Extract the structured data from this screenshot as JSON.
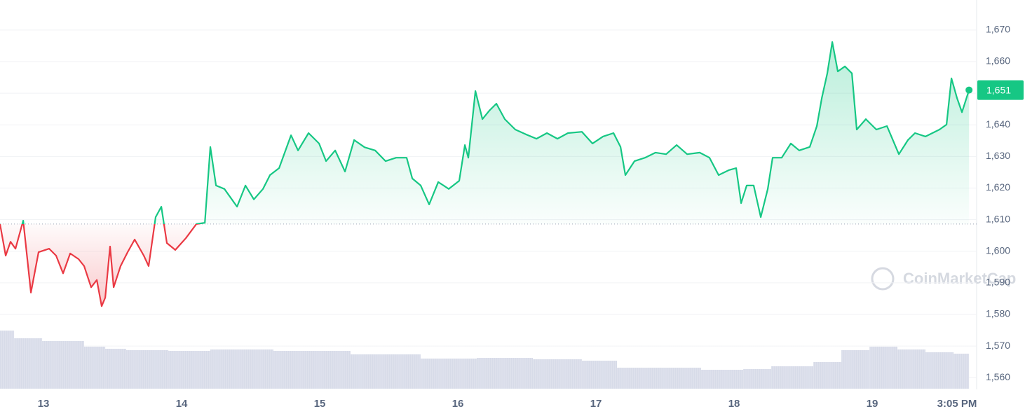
{
  "chart_data": {
    "type": "line",
    "x": [
      12.685,
      12.726,
      12.761,
      12.797,
      12.853,
      12.909,
      12.964,
      13.041,
      13.091,
      13.142,
      13.193,
      13.254,
      13.294,
      13.345,
      13.386,
      13.421,
      13.447,
      13.482,
      13.508,
      13.558,
      13.609,
      13.66,
      13.726,
      13.761,
      13.812,
      13.853,
      13.893,
      13.954,
      14.03,
      14.107,
      14.168,
      14.208,
      14.249,
      14.31,
      14.401,
      14.462,
      14.523,
      14.589,
      14.64,
      14.706,
      14.792,
      14.843,
      14.919,
      14.995,
      15.046,
      15.112,
      15.183,
      15.249,
      15.325,
      15.401,
      15.477,
      15.553,
      15.629,
      15.67,
      15.731,
      15.792,
      15.858,
      15.934,
      16.01,
      16.051,
      16.076,
      16.127,
      16.178,
      16.228,
      16.279,
      16.34,
      16.416,
      16.492,
      16.569,
      16.645,
      16.721,
      16.797,
      16.898,
      16.975,
      17.051,
      17.127,
      17.178,
      17.213,
      17.279,
      17.355,
      17.431,
      17.508,
      17.584,
      17.66,
      17.751,
      17.822,
      17.888,
      17.964,
      18.015,
      18.051,
      18.091,
      18.142,
      18.193,
      18.244,
      18.279,
      18.345,
      18.411,
      18.472,
      18.548,
      18.599,
      18.635,
      18.675,
      18.711,
      18.751,
      18.802,
      18.853,
      18.888,
      18.954,
      19.03,
      19.107,
      19.193,
      19.259,
      19.31,
      19.386,
      19.487,
      19.538,
      19.574,
      19.614,
      19.65,
      19.701
    ],
    "series": [
      {
        "name": "Price",
        "color_up": "#16c784",
        "color_down": "#ea3943",
        "values": [
          1608.6,
          1598.6,
          1603,
          1600.8,
          1609.7,
          1586.9,
          1599.7,
          1600.8,
          1598.6,
          1593,
          1599.3,
          1597.5,
          1595.3,
          1588.6,
          1590.9,
          1582.6,
          1585.3,
          1601.5,
          1588.6,
          1595.3,
          1599.7,
          1603.7,
          1598.6,
          1595.3,
          1610.8,
          1614.1,
          1602.6,
          1600.4,
          1604.1,
          1608.6,
          1609,
          1633,
          1620.8,
          1619.7,
          1614.1,
          1620.8,
          1616.4,
          1619.7,
          1624.1,
          1626.3,
          1636.7,
          1631.9,
          1637.4,
          1634.1,
          1628.5,
          1631.9,
          1625.2,
          1635.2,
          1632.9,
          1631.9,
          1628.5,
          1629.6,
          1629.6,
          1623,
          1620.8,
          1614.8,
          1621.9,
          1619.7,
          1622.3,
          1633.6,
          1629.6,
          1650.7,
          1641.8,
          1644.5,
          1646.7,
          1641.8,
          1638.5,
          1637,
          1635.6,
          1637.4,
          1635.6,
          1637.4,
          1637.8,
          1634.1,
          1636.3,
          1637.4,
          1633,
          1624.1,
          1628.5,
          1629.6,
          1631.2,
          1630.7,
          1633.6,
          1630.7,
          1631.2,
          1629.6,
          1624.1,
          1625.7,
          1626.3,
          1615.2,
          1620.8,
          1620.8,
          1610.8,
          1619.7,
          1629.6,
          1629.6,
          1634.1,
          1631.9,
          1633,
          1639.6,
          1648.5,
          1656.3,
          1666.2,
          1656.9,
          1658.5,
          1656.3,
          1638.5,
          1641.8,
          1638.5,
          1639.6,
          1630.7,
          1635.2,
          1637.4,
          1636.3,
          1638.5,
          1640.1,
          1654.7,
          1648.5,
          1644,
          1651
        ]
      }
    ],
    "reference_line": 1608.6,
    "price_label": {
      "value": 1651,
      "label": "1,651"
    },
    "volume": {
      "color": "#d7dbe8",
      "x": [
        12.685,
        12.787,
        12.99,
        13.294,
        13.447,
        13.599,
        13.904,
        14.208,
        14.665,
        15.223,
        15.731,
        16.137,
        16.543,
        16.898,
        17.152,
        17.761,
        18.066,
        18.269,
        18.574,
        18.777,
        18.98,
        19.183,
        19.386,
        19.589
      ],
      "values": [
        83,
        72,
        68,
        60,
        57,
        55,
        54,
        56,
        54,
        49,
        43,
        44,
        42,
        40,
        30,
        27,
        28,
        32,
        38,
        55,
        60,
        56,
        52,
        50
      ],
      "vlim": [
        0,
        100
      ]
    },
    "xlim": [
      12.685,
      19.756
    ],
    "xticks": [
      13,
      14,
      15,
      16,
      17,
      18,
      19,
      {
        "value": 19.614,
        "label": "3:05 PM"
      }
    ],
    "ylim": [
      1556.5,
      1679.5
    ],
    "yticks": [
      {
        "value": 1560,
        "label": "1,560"
      },
      {
        "value": 1570,
        "label": "1,570"
      },
      {
        "value": 1580,
        "label": "1,580"
      },
      {
        "value": 1590,
        "label": "1,590"
      },
      {
        "value": 1600,
        "label": "1,600"
      },
      {
        "value": 1610,
        "label": "1,610"
      },
      {
        "value": 1620,
        "label": "1,620"
      },
      {
        "value": 1630,
        "label": "1,630"
      },
      {
        "value": 1640,
        "label": "1,640"
      },
      {
        "value": 1650,
        "label": "1,650"
      },
      {
        "value": 1660,
        "label": "1,660"
      },
      {
        "value": 1670,
        "label": "1,670"
      }
    ],
    "grid": true,
    "watermark": "CoinMarketCap"
  }
}
